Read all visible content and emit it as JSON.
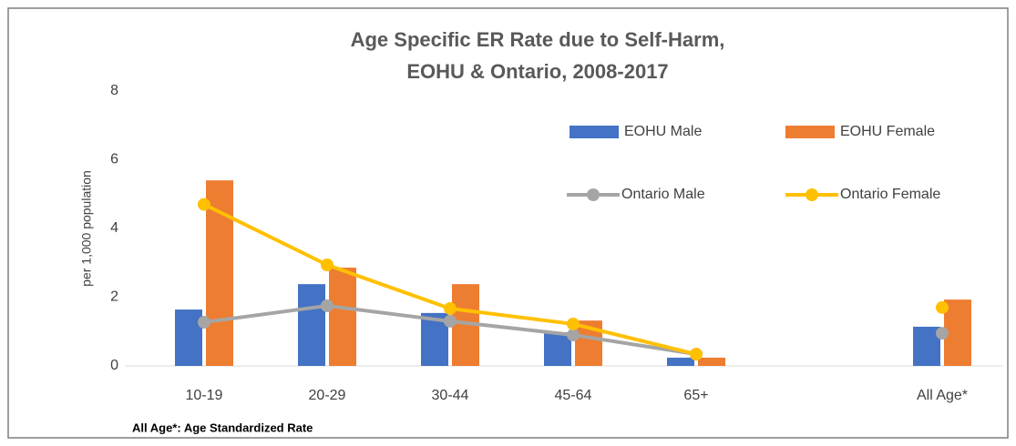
{
  "chart_data": {
    "type": "bar",
    "title": [
      "Age Specific ER Rate due to Self-Harm,",
      "EOHU & Ontario, 2008-2017"
    ],
    "y_label": "per 1,000 population",
    "footnote": "All Age*: Age Standardized Rate",
    "categories": [
      "10-19",
      "20-29",
      "30-44",
      "45-64",
      "65+",
      null,
      "All Age*"
    ],
    "series": [
      {
        "name": "EOHU Male",
        "type": "bar",
        "color": "#4472c4",
        "values": [
          1.64,
          2.38,
          1.54,
          0.98,
          0.24,
          null,
          1.14
        ]
      },
      {
        "name": "EOHU Female",
        "type": "bar",
        "color": "#ed7d31",
        "values": [
          5.4,
          2.86,
          2.38,
          1.32,
          0.24,
          null,
          1.93
        ]
      },
      {
        "name": "Ontario Male",
        "type": "line",
        "color": "#a5a5a5",
        "values": [
          1.27,
          1.75,
          1.3,
          0.9,
          0.34,
          null,
          0.95
        ]
      },
      {
        "name": "Ontario Female",
        "type": "line",
        "color": "#ffc000",
        "values": [
          4.7,
          2.94,
          1.67,
          1.22,
          0.34,
          null,
          1.7
        ]
      }
    ],
    "ylim": [
      0,
      8
    ],
    "yticks": [
      0,
      2,
      4,
      6,
      8
    ],
    "grid": false
  }
}
